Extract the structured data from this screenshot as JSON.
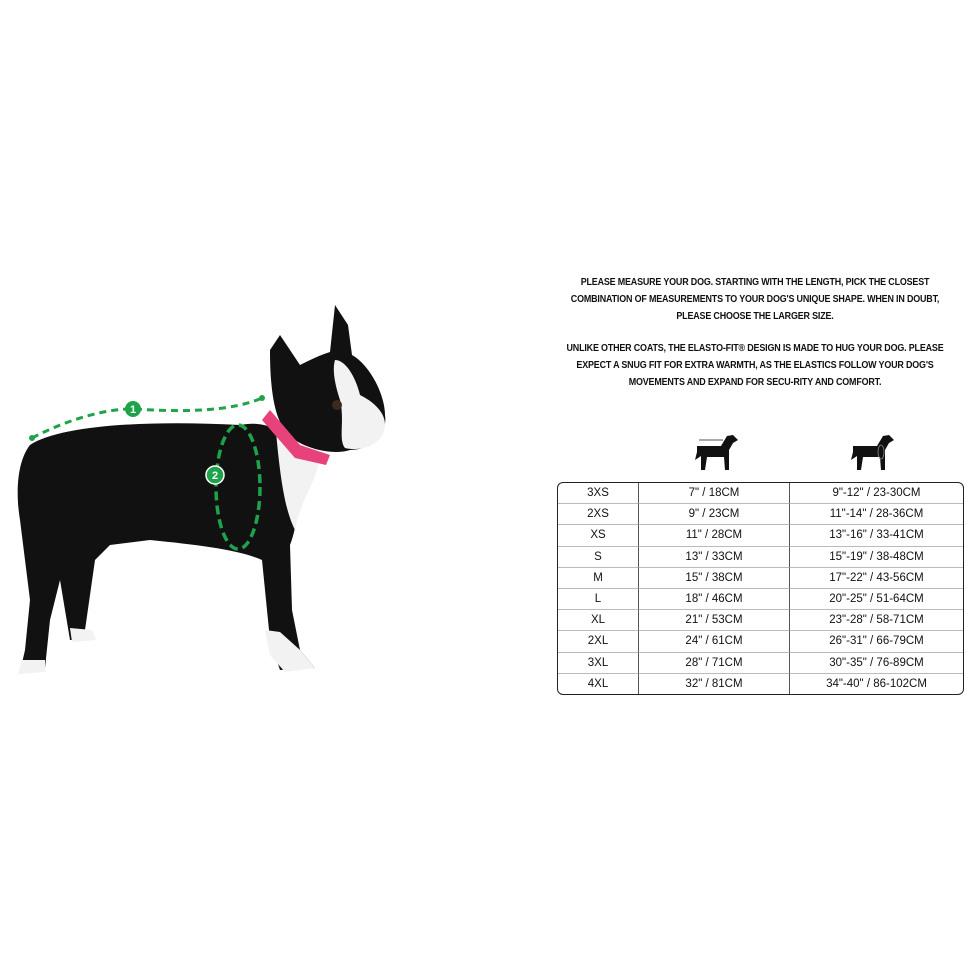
{
  "instructions": {
    "paragraph_1": "PLEASE MEASURE YOUR DOG. STARTING WITH THE LENGTH, PICK THE CLOSEST COMBINATION OF MEASUREMENTS TO YOUR DOG'S UNIQUE SHAPE. WHEN IN DOUBT, PLEASE CHOOSE THE LARGER SIZE.",
    "paragraph_2": "UNLIKE OTHER COATS, THE ELASTO-FIT® DESIGN IS MADE TO HUG YOUR DOG. PLEASE EXPECT A SNUG FIT FOR EXTRA WARMTH, AS THE ELASTICS FOLLOW YOUR DOG'S MOVEMENTS AND EXPAND FOR SECU-RITY AND COMFORT."
  },
  "illustration": {
    "markers": [
      "1",
      "2"
    ],
    "marker_color": "#1fa34a",
    "collar_color": "#e8427c"
  },
  "columns_icons": [
    "dog-length-icon",
    "dog-chest-icon"
  ],
  "size_table": [
    {
      "size": "3XS",
      "length": "7\" / 18CM",
      "chest": "9\"-12\" / 23-30CM"
    },
    {
      "size": "2XS",
      "length": "9\" / 23CM",
      "chest": "11\"-14\" / 28-36CM"
    },
    {
      "size": "XS",
      "length": "11\" / 28CM",
      "chest": "13\"-16\" / 33-41CM"
    },
    {
      "size": "S",
      "length": "13\" / 33CM",
      "chest": "15\"-19\" / 38-48CM"
    },
    {
      "size": "M",
      "length": "15\" / 38CM",
      "chest": "17\"-22\" / 43-56CM"
    },
    {
      "size": "L",
      "length": "18\" / 46CM",
      "chest": "20\"-25\" / 51-64CM"
    },
    {
      "size": "XL",
      "length": "21\" / 53CM",
      "chest": "23\"-28\" / 58-71CM"
    },
    {
      "size": "2XL",
      "length": "24\" / 61CM",
      "chest": "26\"-31\" / 66-79CM"
    },
    {
      "size": "3XL",
      "length": "28\" / 71CM",
      "chest": "30\"-35\" / 76-89CM"
    },
    {
      "size": "4XL",
      "length": "32\" / 81CM",
      "chest": "34\"-40\" / 86-102CM"
    }
  ]
}
